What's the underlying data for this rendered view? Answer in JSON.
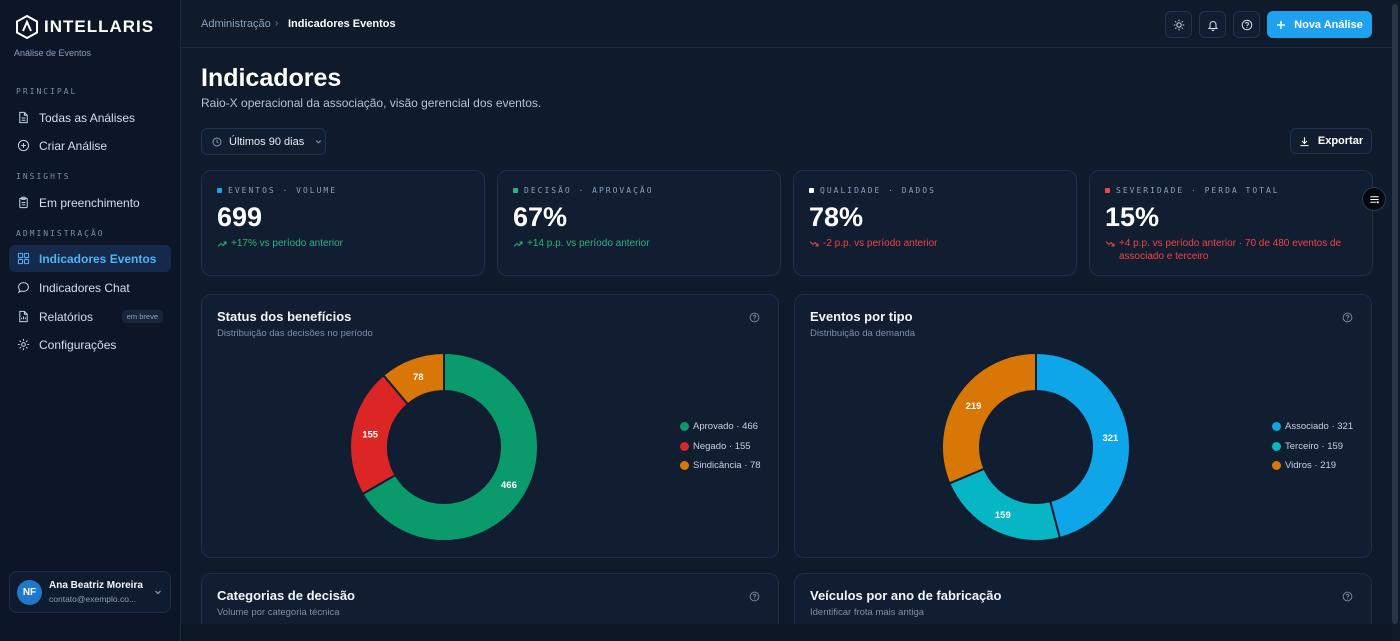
{
  "app": {
    "name": "INTELLARIS",
    "subtitle": "Análise de Eventos"
  },
  "sidebar": {
    "sections": [
      {
        "label": "PRINCIPAL",
        "items": [
          {
            "label": "Todas as Análises",
            "icon": "document-icon"
          },
          {
            "label": "Criar Análise",
            "icon": "plus-circle-icon"
          }
        ]
      },
      {
        "label": "INSIGHTS",
        "items": [
          {
            "label": "Em preenchimento",
            "icon": "clipboard-icon"
          }
        ]
      },
      {
        "label": "ADMINISTRAÇÃO",
        "items": [
          {
            "label": "Indicadores Eventos",
            "icon": "grid-icon",
            "active": true
          },
          {
            "label": "Indicadores Chat",
            "icon": "chat-icon"
          },
          {
            "label": "Relatórios",
            "icon": "report-icon",
            "badge": "em breve"
          },
          {
            "label": "Configurações",
            "icon": "gear-icon"
          }
        ]
      }
    ],
    "user": {
      "initials": "NF",
      "name": "Ana Beatriz Moreira",
      "email": "contato@exemplo.co..."
    }
  },
  "header": {
    "breadcrumb": {
      "root": "Administração",
      "separator": "›",
      "current": "Indicadores Eventos"
    },
    "primary_action": "Nova Análise"
  },
  "page": {
    "title": "Indicadores",
    "subtitle": "Raio-X operacional da associação, visão gerencial dos eventos.",
    "period": "Últimos 90 dias",
    "export": "Exportar"
  },
  "kpis": [
    {
      "label": "EVENTOS · VOLUME",
      "value": "699",
      "delta": "+17% vs período anterior",
      "trend": "up",
      "dot_color": "#1ea1ee"
    },
    {
      "label": "DECISÃO · APROVAÇÃO",
      "value": "67%",
      "delta": "+14 p.p. vs período anterior",
      "trend": "up",
      "dot_color": "#2bb57a"
    },
    {
      "label": "QUALIDADE · DADOS",
      "value": "78%",
      "delta": "-2 p.p. vs período anterior",
      "trend": "down",
      "dot_color": "#ffffff"
    },
    {
      "label": "SEVERIDADE · PERDA TOTAL",
      "value": "15%",
      "delta": "+4 p.p. vs período anterior · 70 de 480 eventos de associado e terceiro",
      "trend": "down",
      "dot_color": "#ef4444"
    }
  ],
  "panels": {
    "status": {
      "title": "Status dos benefícios",
      "subtitle": "Distribuição das decisões no período"
    },
    "tipo": {
      "title": "Eventos por tipo",
      "subtitle": "Distribuição da demanda"
    },
    "categorias": {
      "title": "Categorias de decisão",
      "subtitle": "Volume por categoria técnica"
    },
    "veiculos": {
      "title": "Veículos por ano de fabricação",
      "subtitle": "Identificar frota mais antiga"
    }
  },
  "chart_data": [
    {
      "type": "pie",
      "title": "Status dos benefícios",
      "categories": [
        "Aprovado",
        "Negado",
        "Sindicância"
      ],
      "values": [
        466,
        155,
        78
      ],
      "colors": [
        "#0b9a6b",
        "#dc2626",
        "#d97706"
      ],
      "legend": [
        "Aprovado · 466",
        "Negado · 155",
        "Sindicância · 78"
      ]
    },
    {
      "type": "pie",
      "title": "Eventos por tipo",
      "categories": [
        "Associado",
        "Terceiro",
        "Vidros"
      ],
      "values": [
        321,
        159,
        219
      ],
      "colors": [
        "#0ea5e9",
        "#06b6c4",
        "#d97706"
      ],
      "legend": [
        "Associado · 321",
        "Terceiro · 159",
        "Vidros · 219"
      ]
    }
  ]
}
